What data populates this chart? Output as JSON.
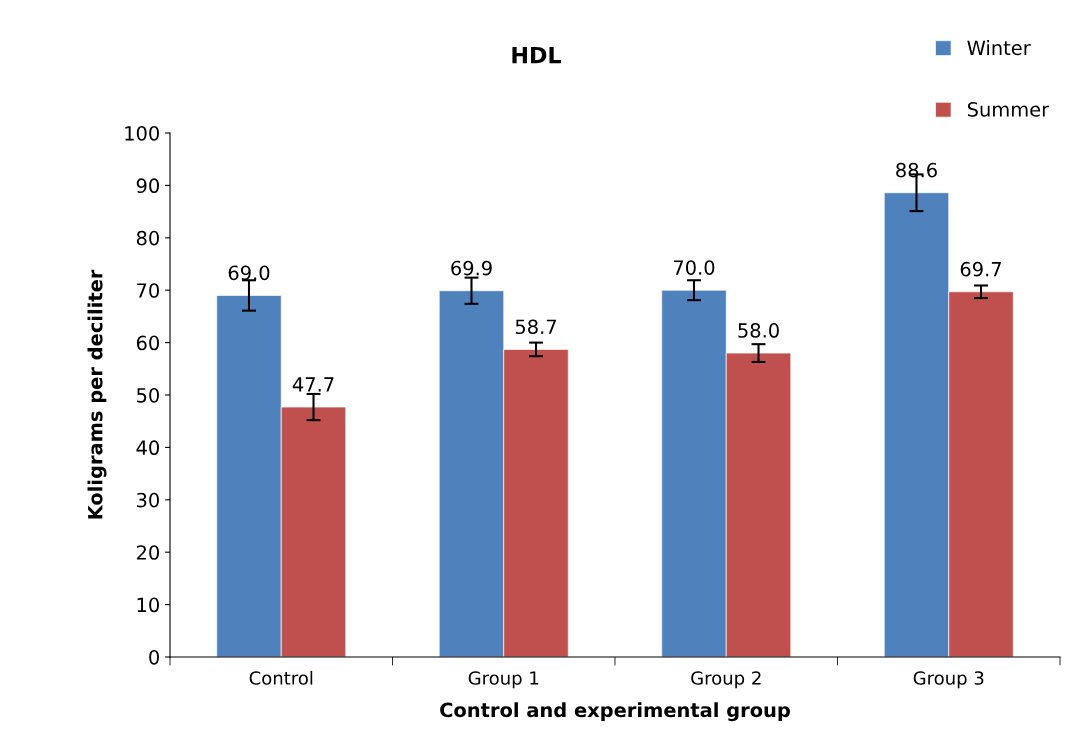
{
  "chart_data": {
    "type": "bar",
    "title": "HDL",
    "xlabel": "Control and experimental group",
    "ylabel": "Koligrams per deciliter",
    "categories": [
      "Control",
      "Group 1",
      "Group 2",
      "Group 3"
    ],
    "series": [
      {
        "name": "Winter",
        "color": "#4f81bd",
        "values": [
          69.0,
          69.9,
          70.0,
          88.6
        ],
        "value_labels": [
          "69.0",
          "69.9",
          "70.0",
          "88.6"
        ],
        "errors": [
          2.9,
          2.5,
          1.9,
          3.5
        ]
      },
      {
        "name": "Summer",
        "color": "#c0504d",
        "values": [
          47.7,
          58.7,
          58.0,
          69.7
        ],
        "value_labels": [
          "47.7",
          "58.7",
          "58.0",
          "69.7"
        ],
        "errors": [
          2.5,
          1.3,
          1.7,
          1.2
        ]
      }
    ],
    "ylim": [
      0,
      100
    ],
    "yticks": [
      0,
      10,
      20,
      30,
      40,
      50,
      60,
      70,
      80,
      90,
      100
    ],
    "grid": false,
    "legend": "top right"
  }
}
